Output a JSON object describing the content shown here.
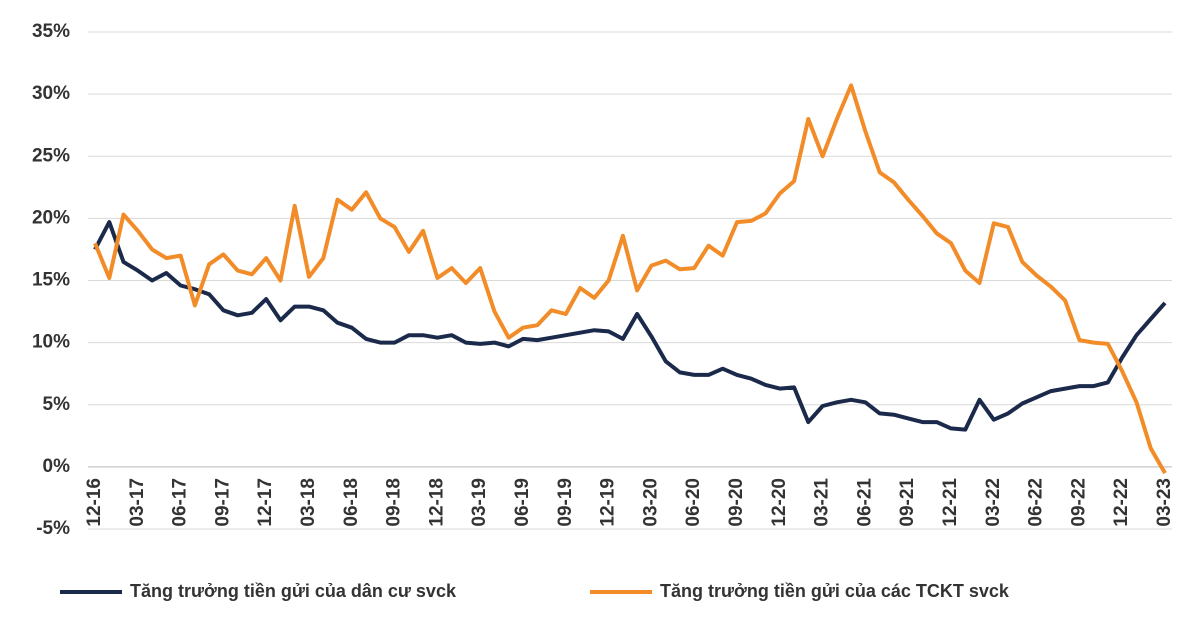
{
  "chart_data": {
    "type": "line",
    "categories": [
      "12-16",
      null,
      null,
      "03-17",
      null,
      null,
      "06-17",
      null,
      null,
      "09-17",
      null,
      null,
      "12-17",
      null,
      null,
      "03-18",
      null,
      null,
      "06-18",
      null,
      null,
      "09-18",
      null,
      null,
      "12-18",
      null,
      null,
      "03-19",
      null,
      null,
      "06-19",
      null,
      null,
      "09-19",
      null,
      null,
      "12-19",
      null,
      null,
      "03-20",
      null,
      null,
      "06-20",
      null,
      null,
      "09-20",
      null,
      null,
      "12-20",
      null,
      null,
      "03-21",
      null,
      null,
      "06-21",
      null,
      null,
      "09-21",
      null,
      null,
      "12-21",
      null,
      null,
      "03-22",
      null,
      null,
      "06-22",
      null,
      null,
      "09-22",
      null,
      null,
      "12-22",
      null,
      null,
      "03-23"
    ],
    "series": [
      {
        "name": "Tăng trưởng tiền gửi của dân cư svck",
        "color": "#1b2a4a",
        "values": [
          17.5,
          19.7,
          16.5,
          15.8,
          15.0,
          15.6,
          14.6,
          14.3,
          13.9,
          12.6,
          12.2,
          12.4,
          13.5,
          11.8,
          12.9,
          12.9,
          12.6,
          11.6,
          11.2,
          10.3,
          10.0,
          10.0,
          10.6,
          10.6,
          10.4,
          10.6,
          10.0,
          9.9,
          10.0,
          9.7,
          10.3,
          10.2,
          10.4,
          10.6,
          10.8,
          11.0,
          10.9,
          10.3,
          12.3,
          10.5,
          8.5,
          7.6,
          7.4,
          7.4,
          7.9,
          7.4,
          7.1,
          6.6,
          6.3,
          6.4,
          3.6,
          4.9,
          5.2,
          5.4,
          5.2,
          4.3,
          4.2,
          3.9,
          3.6,
          3.6,
          3.1,
          3.0,
          5.4,
          3.8,
          4.3,
          5.1,
          5.6,
          6.1,
          6.3,
          6.5,
          6.5,
          6.8,
          8.8,
          10.6,
          11.9,
          13.2
        ]
      },
      {
        "name": "Tăng trưởng tiền gửi của các TCKT svck",
        "color": "#f28c28",
        "values": [
          18,
          15.2,
          20.3,
          19,
          17.5,
          16.8,
          17,
          13,
          16.3,
          17.1,
          15.8,
          15.5,
          16.8,
          15,
          21,
          15.3,
          16.8,
          21.5,
          20.7,
          22.1,
          20,
          19.3,
          17.3,
          19,
          15.2,
          16,
          14.8,
          16,
          12.5,
          10.4,
          11.2,
          11.4,
          12.6,
          12.3,
          14.4,
          13.6,
          15,
          18.6,
          14.2,
          16.2,
          16.6,
          15.9,
          16,
          17.8,
          17,
          19.7,
          19.8,
          20.4,
          22,
          23,
          28,
          25,
          28,
          30.7,
          27,
          23.7,
          22.9,
          21.5,
          20.2,
          18.8,
          18,
          15.8,
          14.8,
          19.6,
          19.3,
          16.5,
          15.4,
          14.5,
          13.4,
          10.2,
          10.0,
          9.9,
          7.7,
          5.2,
          1.5,
          -0.5
        ]
      }
    ],
    "ylim": [
      -5,
      35
    ],
    "yticks": [
      {
        "value": -5,
        "label": "-5%"
      },
      {
        "value": 0,
        "label": "0%"
      },
      {
        "value": 5,
        "label": "5%"
      },
      {
        "value": 10,
        "label": "10%"
      },
      {
        "value": 15,
        "label": "15%"
      },
      {
        "value": 20,
        "label": "20%"
      },
      {
        "value": 25,
        "label": "25%"
      },
      {
        "value": 30,
        "label": "30%"
      },
      {
        "value": 35,
        "label": "35%"
      }
    ],
    "grid": true,
    "legend": "bottom"
  }
}
